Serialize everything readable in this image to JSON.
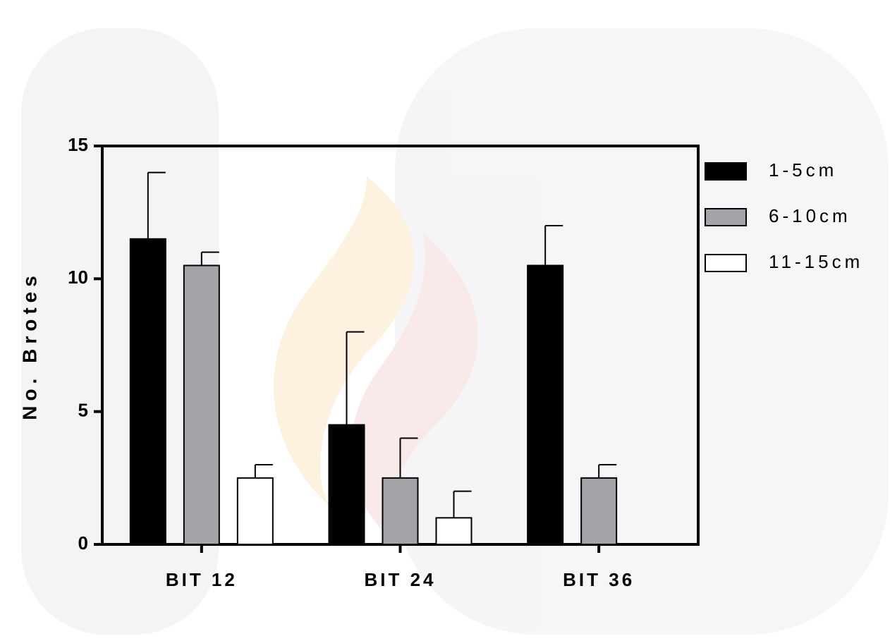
{
  "chart_data": {
    "type": "bar",
    "y_label": "No. Brotes",
    "categories": [
      "BIT 12",
      "BIT 24",
      "BIT 36"
    ],
    "series": [
      {
        "name": "1-5cm",
        "color": "#000000",
        "values": [
          11.5,
          4.5,
          10.5
        ],
        "errors": [
          2.5,
          3.5,
          1.5
        ]
      },
      {
        "name": "6-10cm",
        "color": "#a3a3a8",
        "values": [
          10.5,
          2.5,
          2.5
        ],
        "errors": [
          0.5,
          1.5,
          0.5
        ]
      },
      {
        "name": "11-15cm",
        "color": "#ffffff",
        "values": [
          2.5,
          1,
          null
        ],
        "errors": [
          0.5,
          1,
          null
        ]
      }
    ],
    "ylim": [
      0,
      15
    ],
    "yticks": [
      0,
      5,
      10,
      15
    ],
    "legend": "right"
  }
}
